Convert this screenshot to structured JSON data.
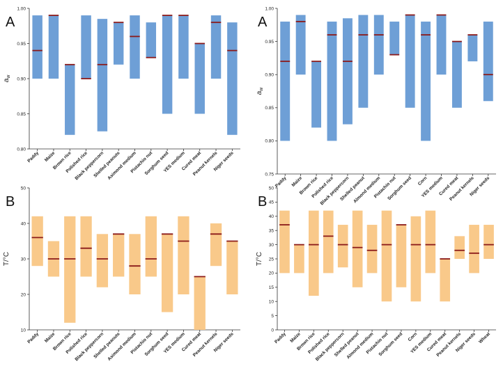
{
  "chart_data": [
    {
      "panel": "A",
      "type": "bar",
      "ylabel": "aw",
      "ylabel_main": "a",
      "ylabel_sub": "w",
      "ylim": [
        0.8,
        1.0
      ],
      "yticks": [
        "0.80",
        "0.85",
        "0.90",
        "0.95",
        "1.00"
      ],
      "ytick_values": [
        0.8,
        0.85,
        0.9,
        0.95,
        1.0
      ],
      "bar_color": "#6e9fd6",
      "median_color": "#8b1a1a",
      "categories": [
        "Paddy",
        "Maize",
        "Brown rice",
        "Polished rice",
        "Black peppercorn",
        "Shelled peanuts",
        "Asimond medium",
        "Pistachio nut",
        "Sorghum seed",
        "YES medium",
        "Cured meat",
        "Peanut kernels",
        "Niger seeds"
      ],
      "min": [
        0.9,
        0.9,
        0.82,
        0.9,
        0.825,
        0.92,
        0.9,
        0.93,
        0.85,
        0.9,
        0.85,
        0.9,
        0.82
      ],
      "max": [
        0.99,
        0.99,
        0.92,
        0.99,
        0.985,
        0.98,
        0.99,
        0.98,
        0.99,
        0.99,
        0.95,
        0.99,
        0.98
      ],
      "median": [
        0.94,
        0.99,
        0.92,
        0.9,
        0.92,
        0.98,
        0.96,
        0.93,
        0.99,
        0.99,
        0.95,
        0.98,
        0.94
      ]
    },
    {
      "panel": "A",
      "type": "bar",
      "ylabel": "aw",
      "ylabel_main": "a",
      "ylabel_sub": "w",
      "ylim": [
        0.75,
        1.0
      ],
      "yticks": [
        "0.75",
        "0.80",
        "0.85",
        "0.90",
        "0.95",
        "1.00"
      ],
      "ytick_values": [
        0.75,
        0.8,
        0.85,
        0.9,
        0.95,
        1.0
      ],
      "bar_color": "#6e9fd6",
      "median_color": "#8b1a1a",
      "categories": [
        "Paddy",
        "Maize",
        "Brown rice",
        "Polished rice",
        "Black peppercorn",
        "Shelled peanut",
        "Almond medium",
        "Pistachio nut",
        "Sorghum seed",
        "Corn",
        "YES medium",
        "Cured meat",
        "Peanut kernels",
        "Niger seeds"
      ],
      "min": [
        0.8,
        0.9,
        0.82,
        0.8,
        0.825,
        0.85,
        0.9,
        0.93,
        0.85,
        0.8,
        0.9,
        0.85,
        0.92,
        0.86
      ],
      "max": [
        0.98,
        0.99,
        0.92,
        0.98,
        0.985,
        0.99,
        0.99,
        0.98,
        0.99,
        0.98,
        0.99,
        0.95,
        0.96,
        0.98
      ],
      "median": [
        0.92,
        0.98,
        0.92,
        0.96,
        0.92,
        0.96,
        0.96,
        0.93,
        0.99,
        0.96,
        0.99,
        0.95,
        0.96,
        0.9
      ]
    },
    {
      "panel": "B",
      "type": "bar",
      "ylabel": "T/°C",
      "ylim": [
        10,
        50
      ],
      "yticks": [
        "10",
        "20",
        "30",
        "40",
        "50"
      ],
      "ytick_values": [
        10,
        20,
        30,
        40,
        50
      ],
      "bar_color": "#f9c98a",
      "median_color": "#8b1a1a",
      "categories": [
        "Paddy",
        "Maize",
        "Brown rice",
        "Polished rice",
        "Black peppercorn",
        "Shelled peanuts",
        "Asimond medium",
        "Pistachio nut",
        "Sorghum seed",
        "YES medium",
        "Cured meat",
        "Peanut kernels",
        "Niger seeds"
      ],
      "min": [
        28,
        25,
        12,
        25,
        22,
        25,
        20,
        25,
        15,
        20,
        10,
        28,
        20
      ],
      "max": [
        42,
        35,
        42,
        42,
        37,
        37,
        37,
        42,
        37,
        42,
        25,
        40,
        35
      ],
      "median": [
        36,
        30,
        30,
        33,
        30,
        37,
        28,
        30,
        37,
        35,
        25,
        37,
        35
      ]
    },
    {
      "panel": "B",
      "type": "bar",
      "ylabel": "T/°C",
      "ylim": [
        0,
        50
      ],
      "yticks": [
        "0",
        "5",
        "10",
        "15",
        "20",
        "25",
        "30",
        "35",
        "40",
        "45",
        "50"
      ],
      "ytick_values": [
        0,
        5,
        10,
        15,
        20,
        25,
        30,
        35,
        40,
        45,
        50
      ],
      "bar_color": "#f9c98a",
      "median_color": "#8b1a1a",
      "categories": [
        "Paddy",
        "Maize",
        "Brown rice",
        "Polished rice",
        "Black peppercorn",
        "Shelled peanut",
        "Almond medium",
        "Pistachio nut",
        "Sorghum seed",
        "Corn",
        "YES medium",
        "Cured meat",
        "Peanut kernels",
        "Niger seeds",
        "Wheat"
      ],
      "min": [
        20,
        20,
        12,
        20,
        22,
        15,
        20,
        10,
        15,
        10,
        20,
        10,
        25,
        20,
        25
      ],
      "max": [
        42,
        30,
        42,
        42,
        37,
        42,
        37,
        42,
        37,
        40,
        42,
        25,
        33,
        37,
        37
      ],
      "median": [
        37,
        30,
        30,
        33,
        30,
        29,
        28,
        30,
        37,
        30,
        30,
        25,
        28,
        27,
        30
      ]
    }
  ]
}
